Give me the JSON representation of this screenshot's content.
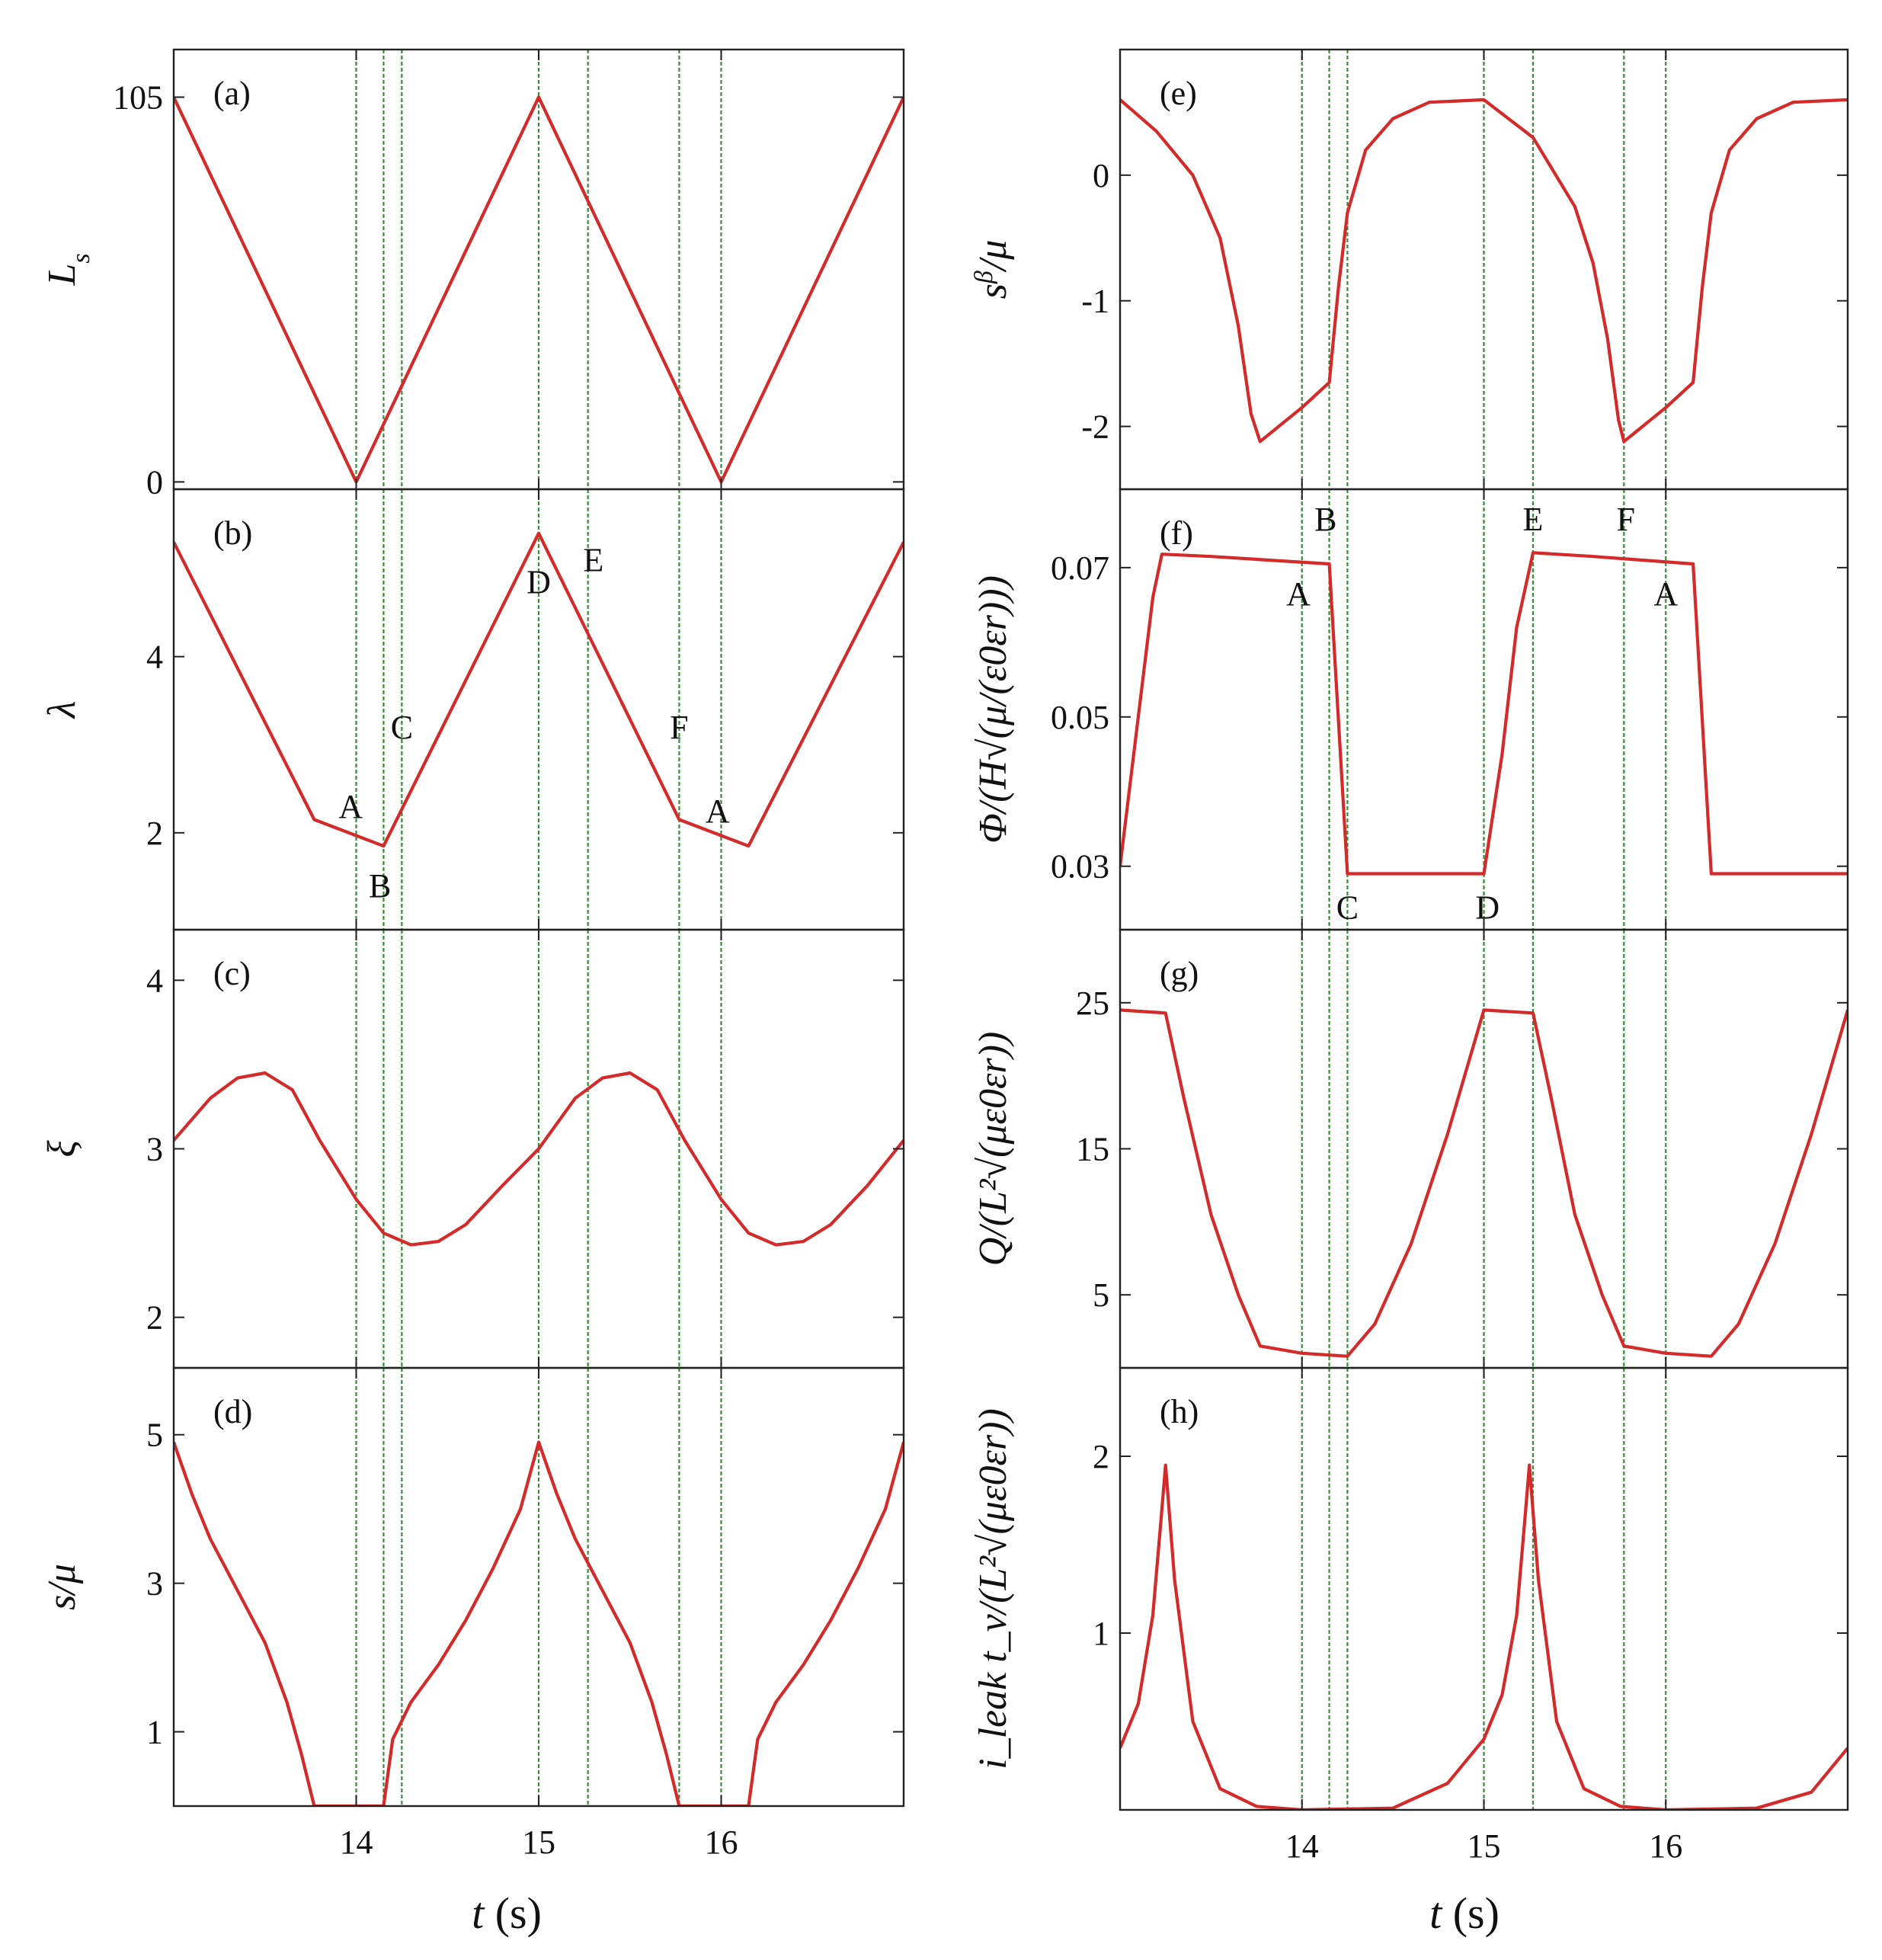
{
  "figure": {
    "x_axis_label": {
      "var": "t",
      "unit": "(s)"
    },
    "colors": {
      "curve": "#d42a2a",
      "marker": "#3a8a3a",
      "axis": "#222222"
    }
  },
  "chart_data": [
    {
      "panel": "(a)",
      "type": "line",
      "ylabel": "L_s",
      "ylabel_html": [
        "L",
        "s"
      ],
      "xlim": [
        13,
        17
      ],
      "ylim": [
        -2,
        118
      ],
      "yticks": [
        0,
        105
      ],
      "ytick_labels": [
        "0",
        "105"
      ],
      "xticks": [
        14,
        15,
        16
      ],
      "xtick_labels": [],
      "markers": [
        14,
        14.15,
        14.25,
        15,
        15.27,
        15.77,
        16
      ],
      "series": [
        {
          "x": [
            13,
            14,
            15,
            16,
            17
          ],
          "y": [
            105,
            0,
            105,
            0,
            105
          ]
        }
      ],
      "annotations": []
    },
    {
      "panel": "(b)",
      "type": "line",
      "ylabel": "λ",
      "xlim": [
        13,
        17
      ],
      "ylim": [
        0.9,
        5.9
      ],
      "yticks": [
        2,
        4
      ],
      "ytick_labels": [
        "2",
        "4"
      ],
      "xticks": [
        14,
        15,
        16
      ],
      "xtick_labels": [],
      "markers": [
        14,
        14.15,
        14.25,
        15,
        15.27,
        15.77,
        16
      ],
      "series": [
        {
          "x": [
            13,
            13.77,
            14.15,
            15,
            15.77,
            16.15,
            17
          ],
          "y": [
            5.3,
            2.15,
            1.85,
            5.4,
            2.15,
            1.85,
            5.3
          ]
        }
      ],
      "annotations": [
        {
          "text": "A",
          "x": 13.97,
          "y": 2.3
        },
        {
          "text": "B",
          "x": 14.13,
          "y": 1.4
        },
        {
          "text": "C",
          "x": 14.25,
          "y": 3.2
        },
        {
          "text": "D",
          "x": 15.0,
          "y": 4.85
        },
        {
          "text": "E",
          "x": 15.3,
          "y": 5.1
        },
        {
          "text": "F",
          "x": 15.77,
          "y": 3.2
        },
        {
          "text": "A",
          "x": 15.98,
          "y": 2.25
        }
      ]
    },
    {
      "panel": "(c)",
      "type": "line",
      "ylabel": "ξ",
      "xlim": [
        13,
        17
      ],
      "ylim": [
        1.7,
        4.3
      ],
      "yticks": [
        2,
        3,
        4
      ],
      "ytick_labels": [
        "2",
        "3",
        "4"
      ],
      "xticks": [
        14,
        15,
        16
      ],
      "xtick_labels": [],
      "markers": [
        14,
        14.15,
        14.25,
        15,
        15.27,
        15.77,
        16
      ],
      "series": [
        {
          "x": [
            13,
            13.2,
            13.35,
            13.5,
            13.65,
            13.8,
            14.0,
            14.15,
            14.3,
            14.45,
            14.6,
            14.8,
            15.0,
            15.2,
            15.35,
            15.5,
            15.65,
            15.8,
            16.0,
            16.15,
            16.3,
            16.45,
            16.6,
            16.8,
            17
          ],
          "y": [
            3.05,
            3.3,
            3.42,
            3.45,
            3.35,
            3.05,
            2.7,
            2.5,
            2.43,
            2.45,
            2.55,
            2.78,
            3.0,
            3.3,
            3.42,
            3.45,
            3.35,
            3.05,
            2.7,
            2.5,
            2.43,
            2.45,
            2.55,
            2.78,
            3.05
          ]
        }
      ],
      "annotations": []
    },
    {
      "panel": "(d)",
      "type": "line",
      "ylabel": "s/μ",
      "xlim": [
        13,
        17
      ],
      "ylim": [
        0,
        5.9
      ],
      "yticks": [
        1,
        3,
        5
      ],
      "ytick_labels": [
        "1",
        "3",
        "5"
      ],
      "xticks": [
        14,
        15,
        16
      ],
      "xtick_labels": [
        "14",
        "15",
        "16"
      ],
      "markers": [
        14,
        14.15,
        14.25,
        15,
        15.27,
        15.77,
        16
      ],
      "series": [
        {
          "x": [
            13,
            13.1,
            13.2,
            13.35,
            13.5,
            13.62,
            13.7,
            13.77,
            14.15,
            14.2,
            14.3,
            14.45,
            14.6,
            14.75,
            14.9,
            15.0,
            15.1,
            15.2,
            15.35,
            15.5,
            15.62,
            15.7,
            15.77,
            16.15,
            16.2,
            16.3,
            16.45,
            16.6,
            16.75,
            16.9,
            17
          ],
          "y": [
            4.9,
            4.2,
            3.6,
            2.9,
            2.2,
            1.4,
            0.7,
            0.0,
            0.0,
            0.9,
            1.4,
            1.9,
            2.5,
            3.2,
            4.0,
            4.9,
            4.2,
            3.6,
            2.9,
            2.2,
            1.4,
            0.7,
            0.0,
            0.0,
            0.9,
            1.4,
            1.9,
            2.5,
            3.2,
            4.0,
            4.9
          ]
        }
      ],
      "annotations": []
    },
    {
      "panel": "(e)",
      "type": "line",
      "ylabel": "s^β/μ",
      "ylabel_html": [
        "s",
        "β",
        "/μ"
      ],
      "xlim": [
        13,
        17
      ],
      "ylim": [
        -2.5,
        1.0
      ],
      "yticks": [
        -2,
        -1,
        0
      ],
      "ytick_labels": [
        "-2",
        "-1",
        "0"
      ],
      "xticks": [
        14,
        15,
        16
      ],
      "xtick_labels": [],
      "markers": [
        14,
        14.15,
        14.25,
        15,
        15.27,
        15.77,
        16
      ],
      "series": [
        {
          "x": [
            13,
            13.2,
            13.4,
            13.55,
            13.65,
            13.72,
            13.77,
            14.0,
            14.15,
            14.2,
            14.25,
            14.35,
            14.5,
            14.7,
            15.0,
            15.27,
            15.5,
            15.6,
            15.68,
            15.74,
            15.77,
            16.0,
            16.15,
            16.2,
            16.25,
            16.35,
            16.5,
            16.7,
            17
          ],
          "y": [
            0.6,
            0.35,
            0.0,
            -0.5,
            -1.2,
            -1.9,
            -2.12,
            -1.85,
            -1.65,
            -0.9,
            -0.3,
            0.2,
            0.45,
            0.58,
            0.6,
            0.3,
            -0.25,
            -0.7,
            -1.3,
            -1.95,
            -2.12,
            -1.85,
            -1.65,
            -0.9,
            -0.3,
            0.2,
            0.45,
            0.58,
            0.6
          ]
        }
      ],
      "annotations": []
    },
    {
      "panel": "(f)",
      "type": "line",
      "ylabel": "Φ/(H√(μ/(ε0εr)))",
      "xlim": [
        13,
        17
      ],
      "ylim": [
        0.0215,
        0.0805
      ],
      "yticks": [
        0.03,
        0.05,
        0.07
      ],
      "ytick_labels": [
        "0.03",
        "0.05",
        "0.07"
      ],
      "xticks": [
        14,
        15,
        16
      ],
      "xtick_labels": [],
      "markers": [
        14,
        14.15,
        14.25,
        15,
        15.27,
        15.77,
        16
      ],
      "series": [
        {
          "x": [
            13,
            13.1,
            13.18,
            13.23,
            13.5,
            14.15,
            14.25,
            15.0,
            15.1,
            15.18,
            15.27,
            15.6,
            16.15,
            16.25,
            17
          ],
          "y": [
            0.03,
            0.05,
            0.066,
            0.0718,
            0.0715,
            0.0705,
            0.029,
            0.029,
            0.045,
            0.062,
            0.072,
            0.0715,
            0.0705,
            0.029,
            0.029
          ]
        }
      ],
      "annotations": [
        {
          "text": "B",
          "x": 14.13,
          "y": 0.0765
        },
        {
          "text": "E",
          "x": 15.27,
          "y": 0.0765
        },
        {
          "text": "F",
          "x": 15.78,
          "y": 0.0765
        },
        {
          "text": "A",
          "x": 13.98,
          "y": 0.0665
        },
        {
          "text": "A",
          "x": 16.0,
          "y": 0.0665
        },
        {
          "text": "C",
          "x": 14.25,
          "y": 0.0245
        },
        {
          "text": "D",
          "x": 15.02,
          "y": 0.0245
        }
      ]
    },
    {
      "panel": "(g)",
      "type": "line",
      "ylabel": "Q/(L²√(με0εr))",
      "xlim": [
        13,
        17
      ],
      "ylim": [
        0,
        30
      ],
      "yticks": [
        5,
        15,
        25
      ],
      "ytick_labels": [
        "5",
        "15",
        "25"
      ],
      "xticks": [
        14,
        15,
        16
      ],
      "xtick_labels": [],
      "markers": [
        14,
        14.15,
        14.25,
        15,
        15.27,
        15.77,
        16
      ],
      "series": [
        {
          "x": [
            13,
            13.25,
            13.35,
            13.5,
            13.65,
            13.77,
            14.0,
            14.25,
            14.4,
            14.6,
            14.8,
            15.0,
            15.27,
            15.37,
            15.5,
            15.65,
            15.77,
            16.0,
            16.25,
            16.4,
            16.6,
            16.8,
            17
          ],
          "y": [
            24.5,
            24.3,
            18.5,
            10.5,
            5.0,
            1.5,
            1.0,
            0.8,
            3.0,
            8.5,
            16.0,
            24.5,
            24.3,
            18.5,
            10.5,
            5.0,
            1.5,
            1.0,
            0.8,
            3.0,
            8.5,
            16.0,
            24.5
          ]
        }
      ],
      "annotations": []
    },
    {
      "panel": "(h)",
      "type": "line",
      "ylabel": "i_leak t_v/(L²√(με0εr))",
      "xlim": [
        13,
        17
      ],
      "ylim": [
        0,
        2.5
      ],
      "yticks": [
        1,
        2
      ],
      "ytick_labels": [
        "1",
        "2"
      ],
      "xticks": [
        14,
        15,
        16
      ],
      "xtick_labels": [
        "14",
        "15",
        "16"
      ],
      "markers": [
        14,
        14.15,
        14.25,
        15,
        15.27,
        15.77,
        16
      ],
      "series": [
        {
          "x": [
            13,
            13.1,
            13.18,
            13.23,
            13.25,
            13.3,
            13.4,
            13.55,
            13.75,
            14.0,
            14.5,
            14.8,
            15.0,
            15.1,
            15.18,
            15.23,
            15.25,
            15.3,
            15.4,
            15.55,
            15.75,
            16.0,
            16.5,
            16.8,
            17
          ],
          "y": [
            0.35,
            0.6,
            1.1,
            1.7,
            1.95,
            1.3,
            0.5,
            0.12,
            0.02,
            0.0,
            0.01,
            0.15,
            0.4,
            0.65,
            1.1,
            1.7,
            1.95,
            1.3,
            0.5,
            0.12,
            0.02,
            0.0,
            0.01,
            0.1,
            0.35
          ]
        }
      ],
      "annotations": []
    }
  ]
}
